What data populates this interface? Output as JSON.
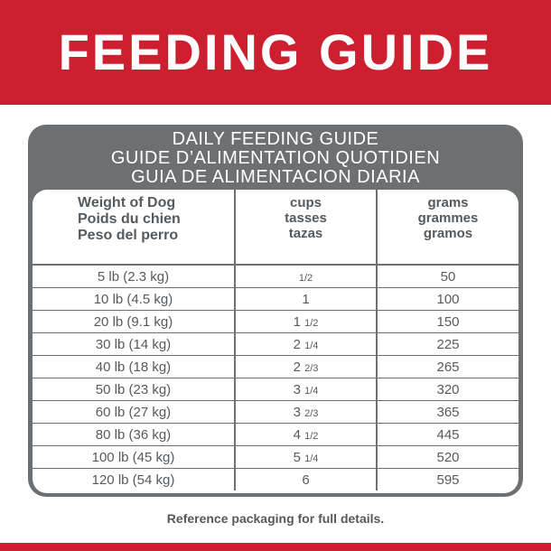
{
  "banner": {
    "title": "FEEDING GUIDE"
  },
  "card": {
    "title_lines": [
      "DAILY FEEDING GUIDE",
      "GUIDE D’ALIMENTATION QUOTIDIEN",
      "GUIA DE ALIMENTACION DIARIA"
    ]
  },
  "table": {
    "headers": [
      {
        "lines": [
          "Weight of Dog",
          "Poids du chien",
          "Peso del perro"
        ]
      },
      {
        "lines": [
          "cups",
          "tasses",
          "tazas"
        ]
      },
      {
        "lines": [
          "grams",
          "grammes",
          "gramos"
        ]
      }
    ],
    "rows": [
      {
        "weight": "5 lb (2.3 kg)",
        "cups_whole": "",
        "cups_frac": "1/2",
        "grams": "50"
      },
      {
        "weight": "10 lb (4.5 kg)",
        "cups_whole": "1",
        "cups_frac": "",
        "grams": "100"
      },
      {
        "weight": "20 lb (9.1 kg)",
        "cups_whole": "1",
        "cups_frac": "1/2",
        "grams": "150"
      },
      {
        "weight": "30 lb (14 kg)",
        "cups_whole": "2",
        "cups_frac": "1/4",
        "grams": "225"
      },
      {
        "weight": "40 lb (18 kg)",
        "cups_whole": "2",
        "cups_frac": "2/3",
        "grams": "265"
      },
      {
        "weight": "50 lb (23 kg)",
        "cups_whole": "3",
        "cups_frac": "1/4",
        "grams": "320"
      },
      {
        "weight": "60 lb (27 kg)",
        "cups_whole": "3",
        "cups_frac": "2/3",
        "grams": "365"
      },
      {
        "weight": "80 lb (36 kg)",
        "cups_whole": "4",
        "cups_frac": "1/2",
        "grams": "445"
      },
      {
        "weight": "100 lb (45 kg)",
        "cups_whole": "5",
        "cups_frac": "1/4",
        "grams": "520"
      },
      {
        "weight": "120 lb (54 kg)",
        "cups_whole": "6",
        "cups_frac": "",
        "grams": "595"
      }
    ]
  },
  "footnote": "Reference packaging for full details.",
  "colors": {
    "brand_red": "#cc1f2f",
    "panel_gray": "#6d7073",
    "text_gray": "#555a5e"
  }
}
